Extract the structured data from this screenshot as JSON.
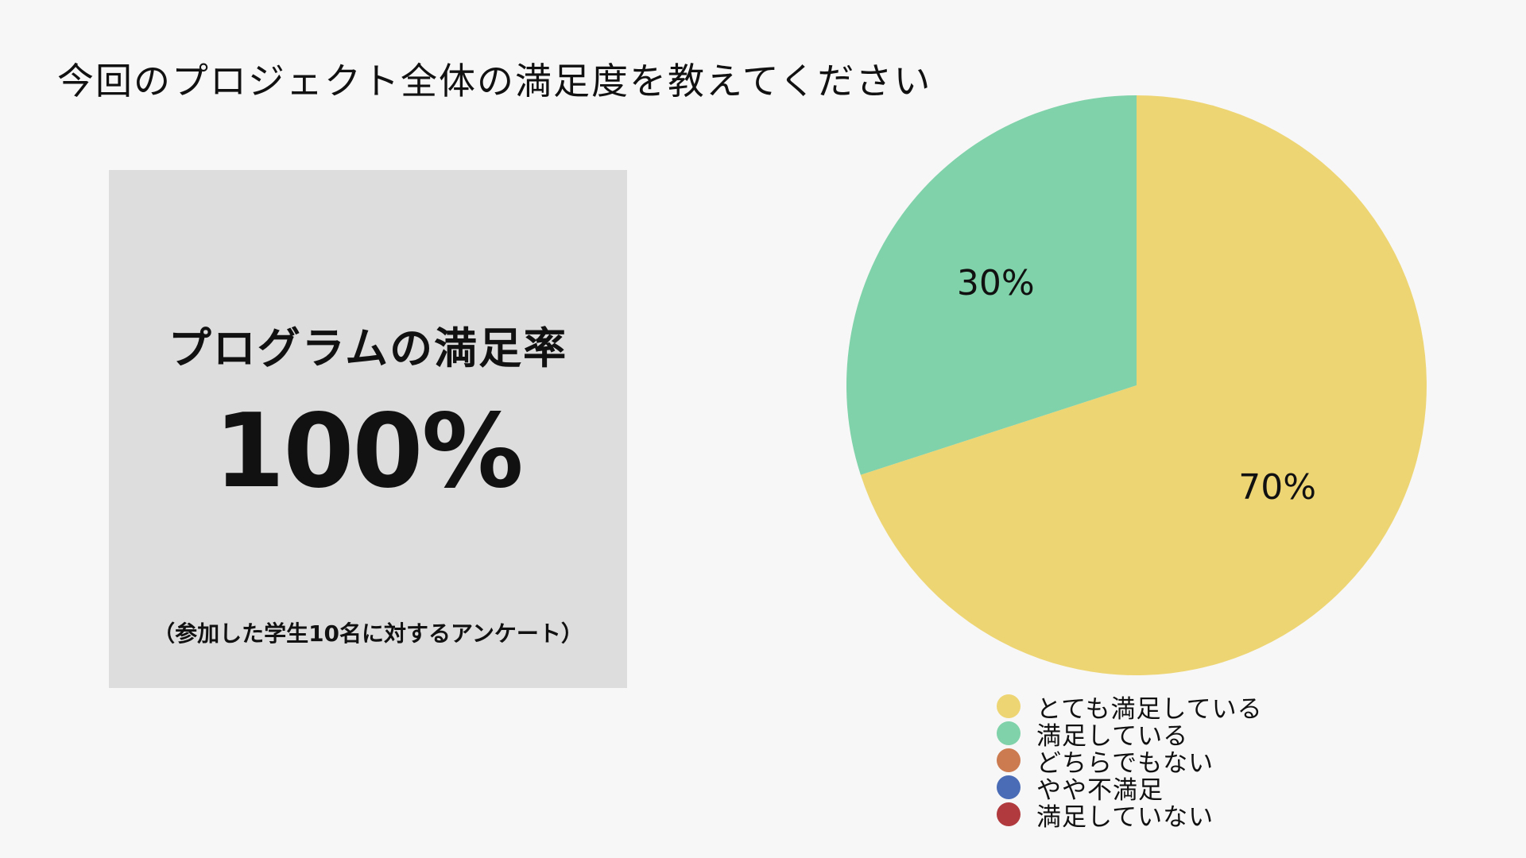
{
  "title": "今回のプロジェクト全体の満足度を教えてください",
  "stat_card": {
    "label": "プログラムの満足率",
    "value": "100%",
    "note": "（参加した学生10名に対するアンケート）"
  },
  "chart_data": {
    "type": "pie",
    "title": "今回のプロジェクト全体の満足度を教えてください",
    "categories": [
      "とても満足している",
      "満足している",
      "どちらでもない",
      "やや不満足",
      "満足していない"
    ],
    "values": [
      70,
      30,
      0,
      0,
      0
    ],
    "data_labels": [
      "70%",
      "30%",
      "",
      "",
      ""
    ],
    "colors": [
      "#EED574",
      "#7FD2A9",
      "#CC7A50",
      "#4A6BB6",
      "#B03A3D"
    ],
    "legend_position": "bottom"
  }
}
